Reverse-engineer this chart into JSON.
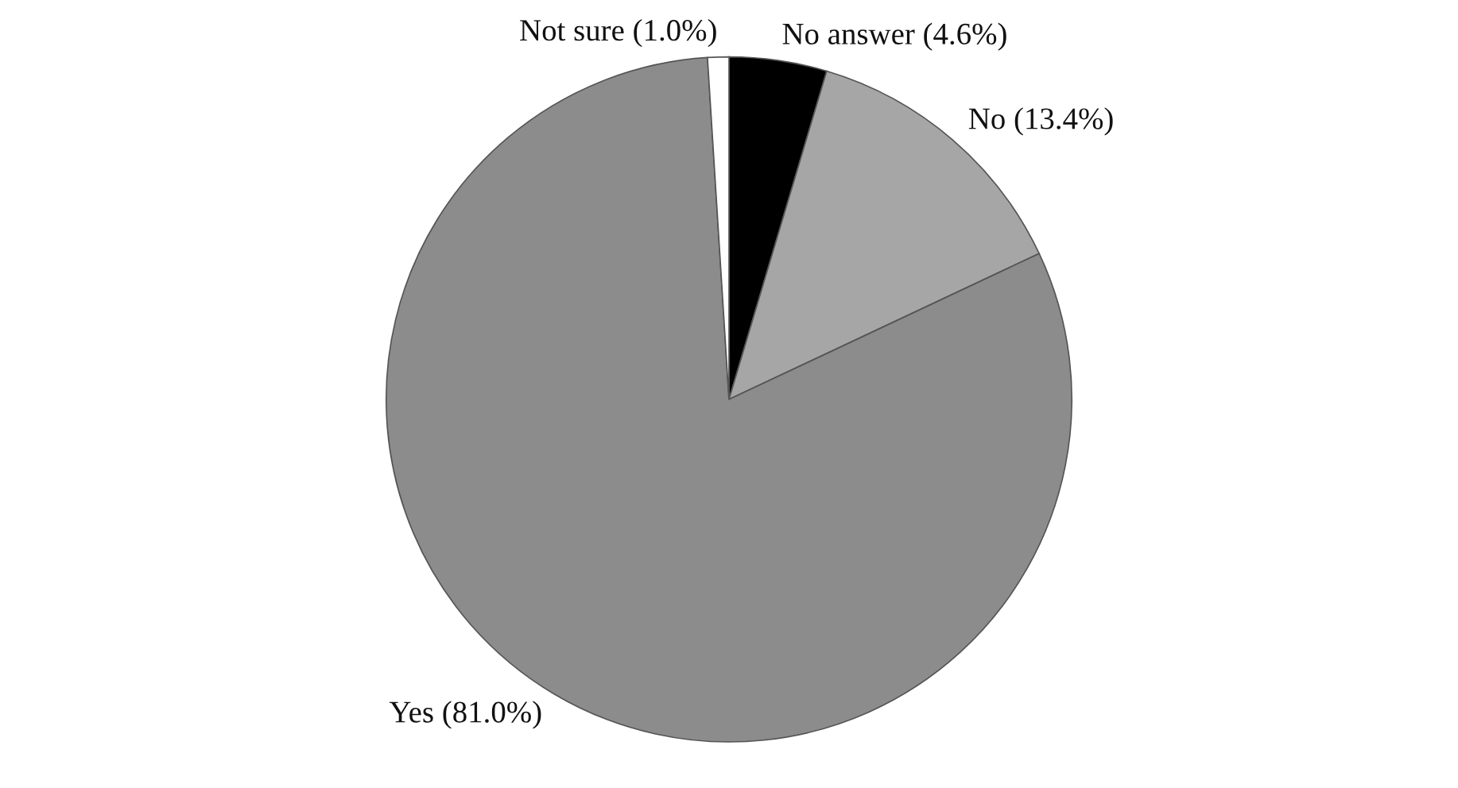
{
  "chart_data": {
    "type": "pie",
    "categories": [
      "No answer (4.6%)",
      "No (13.4%)",
      "Yes (81.0%)",
      "Not sure (1.0%)"
    ],
    "values": [
      4.6,
      13.4,
      81.0,
      1.0
    ],
    "colors": [
      "#000000",
      "#a6a6a6",
      "#8c8c8c",
      "#ffffff"
    ]
  }
}
